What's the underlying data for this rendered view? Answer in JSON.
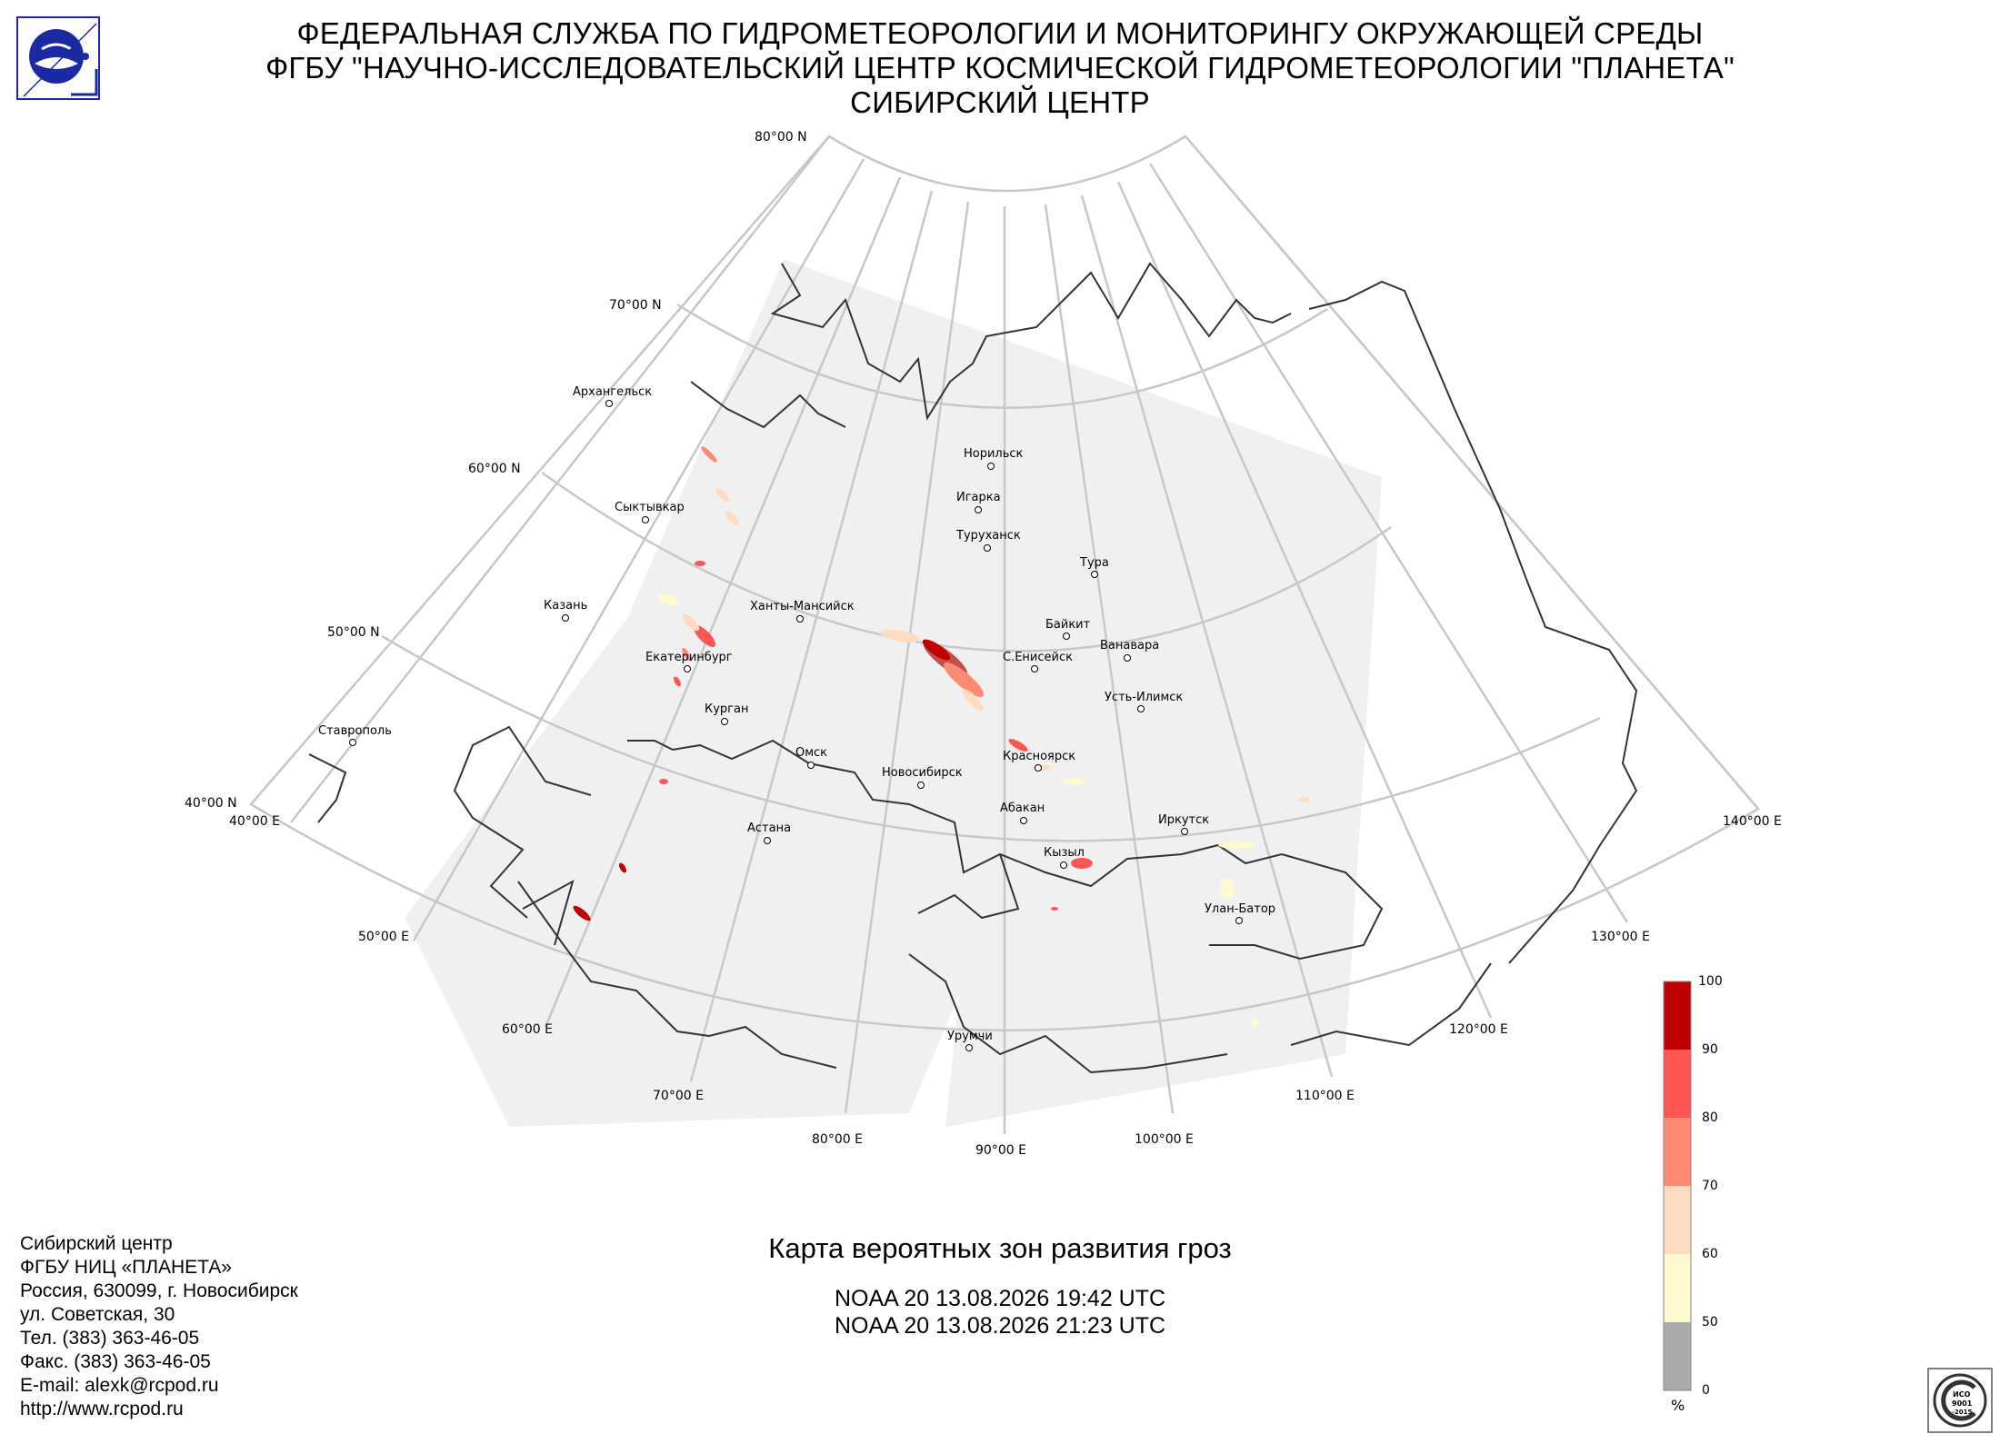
{
  "header": {
    "line1": "ФЕДЕРАЛЬНАЯ СЛУЖБА ПО ГИДРОМЕТЕОРОЛОГИИ И МОНИТОРИНГУ ОКРУЖАЮЩЕЙ СРЕДЫ",
    "line2": "ФГБУ \"НАУЧНО-ИССЛЕДОВАТЕЛЬСКИЙ ЦЕНТР КОСМИЧЕСКОЙ ГИДРОМЕТЕОРОЛОГИИ \"ПЛАНЕТА\"",
    "line3": "СИБИРСКИЙ ЦЕНТР"
  },
  "logo": {
    "icon": "planeta-logo-icon"
  },
  "map": {
    "lat_labels": [
      "80°00 N",
      "70°00 N",
      "60°00 N",
      "50°00 N",
      "40°00 N"
    ],
    "lon_labels": [
      "40°00 E",
      "50°00 E",
      "60°00 E",
      "70°00 E",
      "80°00 E",
      "90°00 E",
      "100°00 E",
      "110°00 E",
      "120°00 E",
      "130°00 E",
      "140°00 E"
    ],
    "cities": [
      "Архангельск",
      "Сыктывкар",
      "Казань",
      "Екатеринбург",
      "Ставрополь",
      "Курган",
      "Ханты-Мансийск",
      "Омск",
      "Астана",
      "Новосибирск",
      "Норильск",
      "Игарка",
      "Туруханск",
      "Тура",
      "Байкит",
      "Ванавара",
      "С.Енисейск",
      "Усть-Илимск",
      "Красноярск",
      "Абакан",
      "Иркутск",
      "Кызыл",
      "Улан-Батор",
      "Урумчи"
    ],
    "colors": {
      "coverage": "#f0f0f0",
      "grid": "#c8c8c8",
      "coast": "#333333"
    }
  },
  "legend": {
    "ticks": [
      "100",
      "90",
      "80",
      "70",
      "60",
      "50",
      "0"
    ],
    "unit": "%",
    "colors": [
      "#c00000",
      "#ff5555",
      "#ff8a73",
      "#ffdcbf",
      "#fff9d0",
      "#aaaaaa"
    ]
  },
  "contacts": [
    "Сибирский центр",
    "ФГБУ НИЦ «ПЛАНЕТА»",
    "Россия, 630099, г. Новосибирск",
    "ул. Советская, 30",
    "Тел. (383) 363-46-05",
    "Факс. (383) 363-46-05",
    "E-mail: alexk@rcpod.ru",
    "http://www.rcpod.ru"
  ],
  "caption": {
    "title": "Карта вероятных зон развития гроз",
    "pass1": "NOAA 20 13.08.2026  19:42 UTC",
    "pass2": "NOAA 20 13.08.2026  21:23 UTC"
  },
  "iso_badge": {
    "text1": "ИСО",
    "text2": "9001",
    "text3": "-2015"
  }
}
